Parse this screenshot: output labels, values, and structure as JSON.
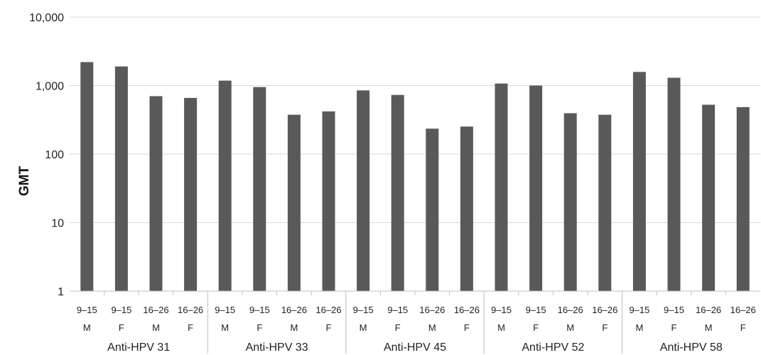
{
  "chart_data": {
    "type": "bar",
    "ylabel": "GMT",
    "xlabel": "",
    "title": "",
    "yscale": "log",
    "ylim": [
      1,
      10000
    ],
    "yticks": [
      {
        "value": 1,
        "label": "1"
      },
      {
        "value": 10,
        "label": "10"
      },
      {
        "value": 100,
        "label": "100"
      },
      {
        "value": 1000,
        "label": "1,000"
      },
      {
        "value": 10000,
        "label": "10,000"
      }
    ],
    "grid": true,
    "legend": "none",
    "bar_color": "#595959",
    "groups": [
      {
        "name": "Anti-HPV 31",
        "bars": [
          {
            "age": "9–15",
            "sex": "M",
            "value": 2200
          },
          {
            "age": "9–15",
            "sex": "F",
            "value": 1900
          },
          {
            "age": "16–26",
            "sex": "M",
            "value": 700
          },
          {
            "age": "16–26",
            "sex": "F",
            "value": 660
          }
        ]
      },
      {
        "name": "Anti-HPV 33",
        "bars": [
          {
            "age": "9–15",
            "sex": "M",
            "value": 1180
          },
          {
            "age": "9–15",
            "sex": "F",
            "value": 950
          },
          {
            "age": "16–26",
            "sex": "M",
            "value": 375
          },
          {
            "age": "16–26",
            "sex": "F",
            "value": 420
          }
        ]
      },
      {
        "name": "Anti-HPV 45",
        "bars": [
          {
            "age": "9–15",
            "sex": "M",
            "value": 850
          },
          {
            "age": "9–15",
            "sex": "F",
            "value": 730
          },
          {
            "age": "16–26",
            "sex": "M",
            "value": 235
          },
          {
            "age": "16–26",
            "sex": "F",
            "value": 252
          }
        ]
      },
      {
        "name": "Anti-HPV 52",
        "bars": [
          {
            "age": "9–15",
            "sex": "M",
            "value": 1070
          },
          {
            "age": "9–15",
            "sex": "F",
            "value": 1000
          },
          {
            "age": "16–26",
            "sex": "M",
            "value": 395
          },
          {
            "age": "16–26",
            "sex": "F",
            "value": 375
          }
        ]
      },
      {
        "name": "Anti-HPV 58",
        "bars": [
          {
            "age": "9–15",
            "sex": "M",
            "value": 1580
          },
          {
            "age": "9–15",
            "sex": "F",
            "value": 1300
          },
          {
            "age": "16–26",
            "sex": "M",
            "value": 525
          },
          {
            "age": "16–26",
            "sex": "F",
            "value": 485
          }
        ]
      }
    ]
  }
}
